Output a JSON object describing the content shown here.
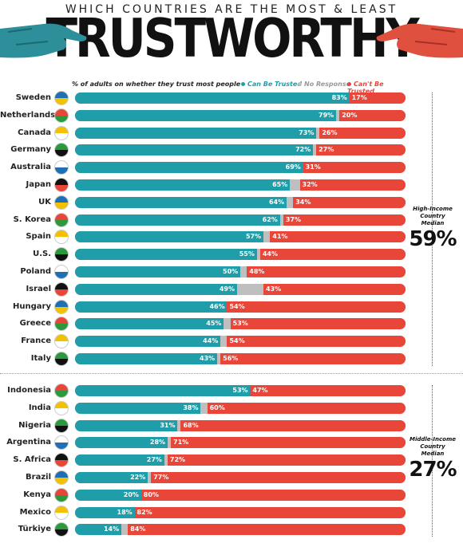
{
  "header": {
    "supertitle": "WHICH COUNTRIES ARE THE MOST & LEAST",
    "title": "TRUSTWORTHY"
  },
  "legend": {
    "description": "% of adults on whether they trust most people",
    "can": "Can Be Trusted",
    "nr": "No Response",
    "cant": "Can't Be Trusted"
  },
  "colors": {
    "can": "#1f9eaa",
    "nr": "#bfbfbf",
    "cant": "#e9463a"
  },
  "medians": {
    "high": {
      "label1": "High-Income",
      "label2": "Country Median",
      "value": "59%"
    },
    "middle": {
      "label1": "Middle-Income",
      "label2": "Country Median",
      "value": "27%"
    }
  },
  "chart_data": {
    "type": "bar",
    "orientation": "horizontal",
    "stacked": true,
    "title": "WHICH COUNTRIES ARE THE MOST & LEAST TRUSTWORTHY",
    "subtitle": "% of adults on whether they trust most people",
    "series_names": [
      "Can Be Trusted",
      "No Response",
      "Can't Be Trusted"
    ],
    "groups": [
      {
        "name": "High-Income",
        "median": 59,
        "rows": [
          {
            "country": "Sweden",
            "can": 83,
            "cant": 17
          },
          {
            "country": "Netherlands",
            "can": 79,
            "cant": 20
          },
          {
            "country": "Canada",
            "can": 73,
            "cant": 26
          },
          {
            "country": "Germany",
            "can": 72,
            "cant": 27
          },
          {
            "country": "Australia",
            "can": 69,
            "cant": 31
          },
          {
            "country": "Japan",
            "can": 65,
            "cant": 32
          },
          {
            "country": "UK",
            "can": 64,
            "cant": 34
          },
          {
            "country": "S. Korea",
            "can": 62,
            "cant": 37
          },
          {
            "country": "Spain",
            "can": 57,
            "cant": 41
          },
          {
            "country": "U.S.",
            "can": 55,
            "cant": 44
          },
          {
            "country": "Poland",
            "can": 50,
            "cant": 48
          },
          {
            "country": "Israel",
            "can": 49,
            "cant": 43
          },
          {
            "country": "Hungary",
            "can": 46,
            "cant": 54
          },
          {
            "country": "Greece",
            "can": 45,
            "cant": 53
          },
          {
            "country": "France",
            "can": 44,
            "cant": 54
          },
          {
            "country": "Italy",
            "can": 43,
            "cant": 56
          }
        ]
      },
      {
        "name": "Middle-Income",
        "median": 27,
        "rows": [
          {
            "country": "Indonesia",
            "can": 53,
            "cant": 47
          },
          {
            "country": "India",
            "can": 38,
            "cant": 60
          },
          {
            "country": "Nigeria",
            "can": 31,
            "cant": 68
          },
          {
            "country": "Argentina",
            "can": 28,
            "cant": 71
          },
          {
            "country": "S. Africa",
            "can": 27,
            "cant": 72
          },
          {
            "country": "Brazil",
            "can": 22,
            "cant": 77
          },
          {
            "country": "Kenya",
            "can": 20,
            "cant": 80
          },
          {
            "country": "Mexico",
            "can": 18,
            "cant": 82
          },
          {
            "country": "Türkiye",
            "can": 14,
            "cant": 84
          }
        ]
      }
    ]
  }
}
